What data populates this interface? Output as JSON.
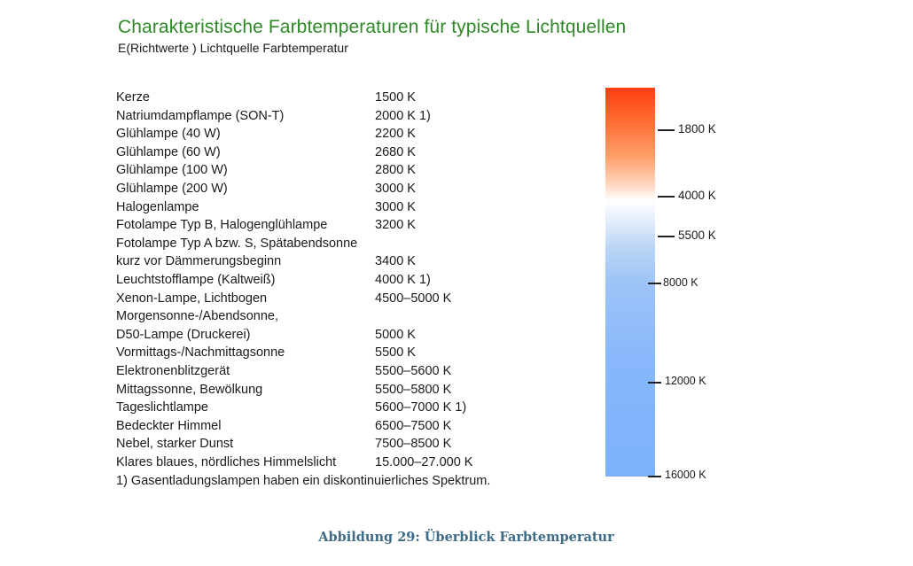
{
  "header": {
    "title": "Charakteristische Farbtemperaturen für typische Lichtquellen",
    "subtitle": "E(Richtwerte ) Lichtquelle Farbtemperatur"
  },
  "rows": [
    {
      "name": "Kerze",
      "value": "1500 K"
    },
    {
      "name": "Natriumdampflampe (SON-T)",
      "value": "2000 K 1)"
    },
    {
      "name": "Glühlampe (40 W)",
      "value": "2200 K"
    },
    {
      "name": "Glühlampe (60 W)",
      "value": "2680 K"
    },
    {
      "name": "Glühlampe (100 W)",
      "value": "2800 K"
    },
    {
      "name": "Glühlampe (200 W)",
      "value": "3000 K"
    },
    {
      "name": "Halogenlampe",
      "value": "3000 K"
    },
    {
      "name": "Fotolampe Typ B, Halogenglühlampe",
      "value": "3200 K"
    },
    {
      "name": "Fotolampe Typ A bzw. S, Spätabendsonne",
      "value": ""
    },
    {
      "name": "kurz vor Dämmerungsbeginn",
      "value": "3400 K"
    },
    {
      "name": "Leuchtstofflampe (Kaltweiß)",
      "value": "4000 K 1)"
    },
    {
      "name": "Xenon-Lampe, Lichtbogen",
      "value": "4500–5000 K"
    },
    {
      "name": "Morgensonne-/Abendsonne,",
      "value": ""
    },
    {
      "name": "D50-Lampe (Druckerei)",
      "value": "5000 K"
    },
    {
      "name": "Vormittags-/Nachmittagsonne",
      "value": "5500 K"
    },
    {
      "name": "Elektronenblitzgerät",
      "value": "5500–5600 K"
    },
    {
      "name": "Mittagssonne, Bewölkung",
      "value": "5500–5800 K"
    },
    {
      "name": "Tageslichtlampe",
      "value": "5600–7000 K 1)"
    },
    {
      "name": "Bedeckter Himmel",
      "value": "6500–7500 K"
    },
    {
      "name": "Nebel, starker Dunst",
      "value": "7500–8500 K"
    },
    {
      "name": "Klares blaues, nördliches Himmelslicht",
      "value": "15.000–27.000 K"
    }
  ],
  "footnote": "1) Gasentladungslampen haben ein diskontinuierliches Spektrum.",
  "scale": {
    "colors": {
      "top": "#ff3d12",
      "middle": "#ffffff",
      "bottom": "#7cb1fc"
    },
    "labels": [
      "1800 K",
      "4000 K",
      "5500 K",
      "8000 K",
      "12000 K",
      "16000 K"
    ]
  },
  "caption": "Abbildung 29: Überblick Farbtemperatur"
}
